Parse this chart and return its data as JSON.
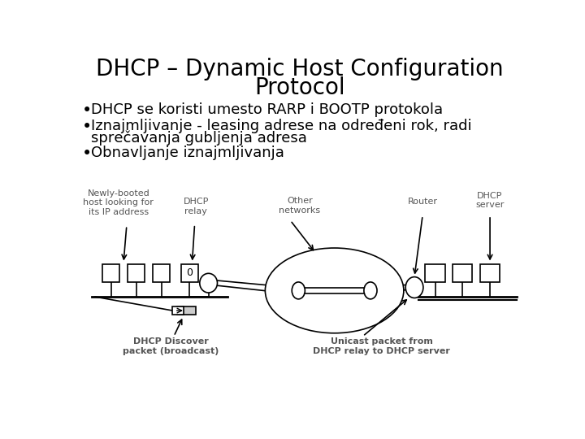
{
  "title_line1": "DHCP – Dynamic Host Configuration",
  "title_line2": "Protocol",
  "bullet1": "DHCP se koristi umesto RARP i BOOTP protokola",
  "bullet2a": "Iznajmljivanje - leasing adrese na određeni rok, radi",
  "bullet2b": "    sprеčavanja gubljenja adresa",
  "bullet3": "Obnavljanje iznajmljivanja",
  "bg_color": "#ffffff",
  "title_fontsize": 20,
  "bullet_fontsize": 13,
  "label_color": "#555555",
  "diagram_labels": {
    "newly_booted": "Newly-booted\nhost looking for\nits IP address",
    "dhcp_relay": "DHCP\nrelay",
    "other_networks": "Other\nnetworks",
    "router": "Router",
    "dhcp_server": "DHCP\nserver",
    "discover": "DHCP Discover\npacket (broadcast)",
    "unicast": "Unicast packet from\nDHCP relay to DHCP server"
  }
}
